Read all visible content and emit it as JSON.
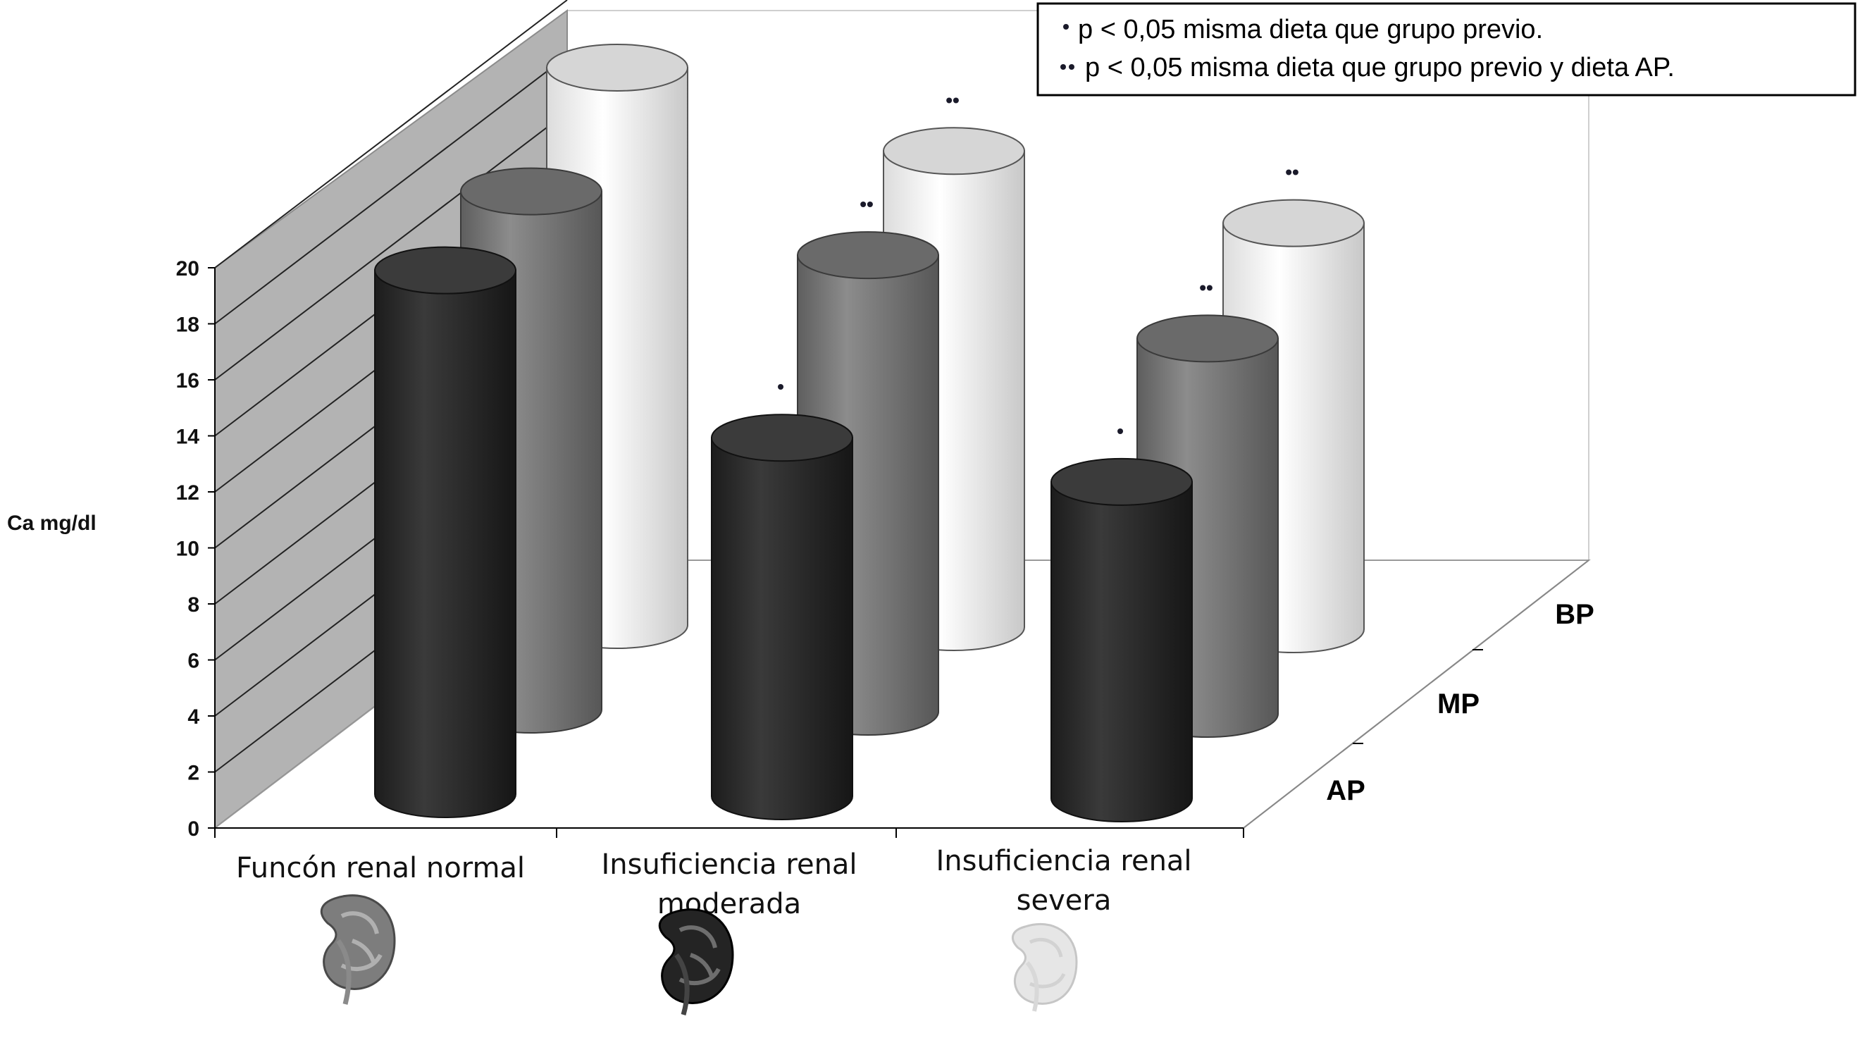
{
  "chart_data": {
    "type": "bar",
    "ylabel": "Ca mg/dl",
    "ylim": [
      0,
      20
    ],
    "yticks": [
      0,
      2,
      4,
      6,
      8,
      10,
      12,
      14,
      16,
      18,
      20
    ],
    "categories": [
      [
        "Funcón renal normal"
      ],
      [
        "Insuficiencia renal",
        "moderada"
      ],
      [
        "Insuficiencia renal",
        "severa"
      ]
    ],
    "depth_labels": [
      "AP",
      "MP",
      "BP"
    ],
    "series": [
      {
        "name": "AP",
        "values": [
          18.7,
          12.8,
          11.3
        ],
        "color": "#2f2f2f",
        "marks": [
          "",
          "*",
          "*"
        ]
      },
      {
        "name": "MP",
        "values": [
          18.5,
          16.3,
          13.4
        ],
        "color": "#7a7a7a",
        "marks": [
          "",
          "**",
          "**"
        ]
      },
      {
        "name": "BP",
        "values": [
          19.9,
          17.0,
          14.5
        ],
        "color": "#f2f2f2",
        "marks": [
          "",
          "**",
          "**"
        ]
      }
    ],
    "legend": {
      "position": "top-right",
      "entries": [
        "p < 0,05 misma dieta que grupo previo.",
        "p < 0,05 misma dieta que grupo previo y dieta AP."
      ]
    }
  }
}
